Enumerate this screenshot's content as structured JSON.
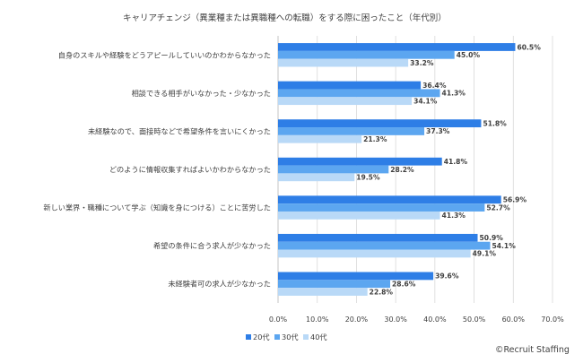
{
  "chart_data": {
    "type": "bar",
    "orientation": "horizontal",
    "title": "キャリアチェンジ（異業種または異職種への転職）をする際に困ったこと（年代別）",
    "categories": [
      "自身のスキルや経験をどうアピールしていいのかわからなかった",
      "相談できる相手がいなかった・少なかった",
      "未経験なので、面接時などで希望条件を言いにくかった",
      "どのように情報収集すればよいかわからなかった",
      "新しい業界・職種について学ぶ（知識を身につける）ことに苦労した",
      "希望の条件に合う求人が少なかった",
      "未経験者可の求人が少なかった"
    ],
    "series": [
      {
        "name": "20代",
        "color": "#2e7ee6",
        "values": [
          60.5,
          36.4,
          51.8,
          41.8,
          56.9,
          50.9,
          39.6
        ]
      },
      {
        "name": "30代",
        "color": "#5ca6f0",
        "values": [
          45.0,
          41.3,
          37.3,
          28.2,
          52.7,
          54.1,
          28.6
        ]
      },
      {
        "name": "40代",
        "color": "#b9d9f7",
        "values": [
          33.2,
          34.1,
          21.3,
          19.5,
          41.3,
          49.1,
          22.8
        ]
      }
    ],
    "xlim": [
      0,
      70
    ],
    "xticks": [
      0,
      10,
      20,
      30,
      40,
      50,
      60,
      70
    ],
    "xtick_labels": [
      "0.0%",
      "10.0%",
      "20.0%",
      "30.0%",
      "40.0%",
      "50.0%",
      "60.0%",
      "70.0%"
    ],
    "value_suffix": "%",
    "legend_position": "bottom",
    "grid": true
  },
  "credit": "©Recruit Staffing"
}
